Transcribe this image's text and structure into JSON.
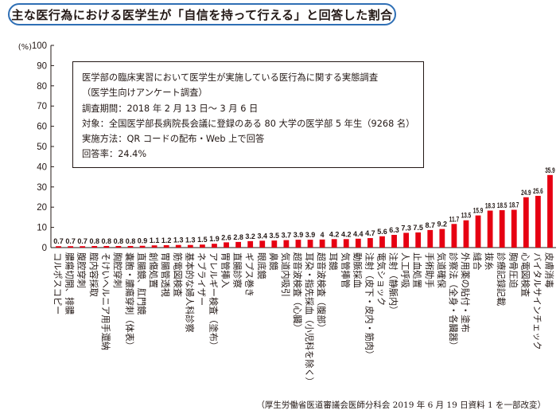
{
  "title": "主な医行為における医学生が「自信を持って行える」と回答した割合",
  "unit_label": "(%)",
  "info_box": {
    "line1": "医学部の臨床実習において医学生が実施している医行為に関する実態調査",
    "line2": "（医学生向けアンケート調査）",
    "line3": "調査期間：2018 年 2 月 13 日～ 3 月 6 日",
    "line4": "対象：全国医学部長病院長会議に登録のある 80 大学の医学部 5 年生（9268 名）",
    "line5": "実施方法：QR コードの配布・Web 上で回答",
    "line6": "回答率：24.4%"
  },
  "source": "（厚生労働省医道審議会医師分科会 2019 年 6 月 19 日資料 1 を一部改変）",
  "colors": {
    "bar": "#e60012",
    "title_border": "#2f6fb5",
    "text": "#231815"
  },
  "chart_data": {
    "type": "bar",
    "ylabel": "(%)",
    "ylim": [
      0,
      100
    ],
    "yticks": [
      0,
      10,
      20,
      30,
      40,
      50,
      60,
      70,
      80,
      90,
      100
    ],
    "grid": false,
    "categories": [
      "コルポスコピー",
      "膿瘍切開、排膿",
      "腹腔穿刺",
      "腟内容採取",
      "そけいヘルニア用手還納",
      "胸腔穿刺",
      "嚢胞・膿瘍穿刺（体表）",
      "直腸鏡、肛門鏡",
      "創傷処置",
      "胃腸管透視",
      "筋電図検査",
      "基本的な婦人科診察",
      "ネブライザー",
      "アレルギー検査（塗布）",
      "胃管挿入",
      "直腸診察",
      "ギプス巻き",
      "眼底鏡",
      "鼻鏡",
      "気道内吸引",
      "超音波検査（心臓）",
      "耳朶・指先採血（小児科を除く）",
      "超音波検査（腹部）",
      "耳鏡",
      "気管挿管",
      "動脈採血",
      "注射（皮下・皮内・筋肉）",
      "電気ショック",
      "注射（静脈内）",
      "人工呼吸",
      "止血処置",
      "手術助手",
      "気道確保",
      "診察法（全身・各臓器）",
      "外用薬の貼付・塗布",
      "縫合",
      "抜糸",
      "診療記録記載",
      "胸骨圧迫",
      "心電図検査",
      "バイタルサインチェック",
      "皮膚消毒"
    ],
    "values": [
      0.7,
      0.7,
      0.7,
      0.8,
      0.8,
      0.8,
      0.8,
      0.9,
      1.1,
      1.2,
      1.3,
      1.3,
      1.5,
      1.9,
      2.6,
      2.8,
      3.2,
      3.4,
      3.5,
      3.7,
      3.9,
      3.9,
      4,
      4.2,
      4.2,
      4.4,
      4.7,
      5.6,
      6.3,
      7.3,
      7.5,
      8.7,
      9.2,
      11.7,
      13.5,
      15.9,
      18.3,
      18.5,
      18.7,
      24.9,
      25.6,
      35.9
    ],
    "value_labels": [
      "0.7",
      "0.7",
      "0.7",
      "0.8",
      "0.8",
      "0.8",
      "0.8",
      "0.9",
      "1.1",
      "1.2",
      "1.3",
      "1.3",
      "1.5",
      "1.9",
      "2.6",
      "2.8",
      "3.2",
      "3.4",
      "3.5",
      "3.7",
      "3.9",
      "3.9",
      "4",
      "4.2",
      "4.2",
      "4.4",
      "4.7",
      "5.6",
      "6.3",
      "7.3",
      "7.5",
      "8.7",
      "9.2",
      "11.7",
      "13.5",
      "15.9",
      "18.3",
      "18.5",
      "18.7",
      "24.9",
      "25.6",
      "35.9"
    ]
  }
}
